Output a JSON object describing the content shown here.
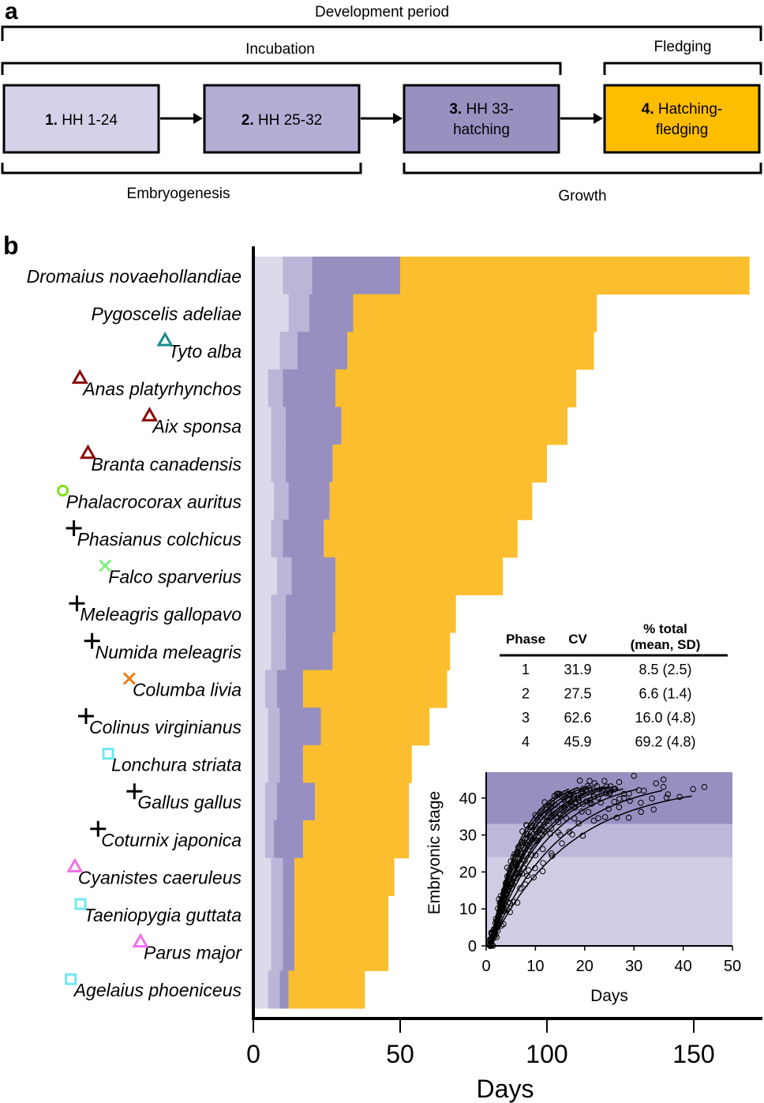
{
  "panel_a": {
    "panel_label": "a",
    "top_bracket_label": "Development  period",
    "incubation_label": "Incubation",
    "fledging_label": "Fledging",
    "embryogenesis_label": "Embryogenesis",
    "growth_label": "Growth",
    "boxes": [
      {
        "num": "1.",
        "text_line1": "HH 1-24",
        "text_line2": "",
        "color": "#d4d1e8"
      },
      {
        "num": "2.",
        "text_line1": "HH 25-32",
        "text_line2": "",
        "color": "#b3aed4"
      },
      {
        "num": "3.",
        "text_line1": "HH 33-",
        "text_line2": "hatching",
        "color": "#9990c0"
      },
      {
        "num": "4.",
        "text_line1": "Hatching-",
        "text_line2": "fledging",
        "color": "#ffbd00"
      }
    ]
  },
  "panel_b": {
    "panel_label": "b",
    "phase_colors": [
      "#dcdaea",
      "#bbb6d8",
      "#978fc0",
      "#fbbe2e"
    ]
  },
  "chart_data": [
    {
      "type": "bar",
      "subtype": "stacked-horizontal",
      "title": "",
      "xlabel": "Days",
      "ylabel": "",
      "xlim": [
        0,
        172
      ],
      "xticks": [
        0,
        50,
        100,
        150
      ],
      "series_names": [
        "Phase 1 (HH 1-24)",
        "Phase 2 (HH 25-32)",
        "Phase 3 (HH 33-hatching)",
        "Phase 4 (Hatching-fledging)"
      ],
      "species": [
        {
          "name": "Dromaius  novaehollandiae",
          "marker": "",
          "marker_color": "",
          "cum_days": [
            10,
            20,
            50,
            169
          ]
        },
        {
          "name": "Pygoscelis adeliae",
          "marker": "",
          "marker_color": "",
          "cum_days": [
            12,
            19,
            34,
            117
          ]
        },
        {
          "name": "Tyto alba",
          "marker": "triangle",
          "marker_color": "#1a8a8a",
          "cum_days": [
            9,
            15,
            32,
            116
          ]
        },
        {
          "name": "Anas platyrhynchos",
          "marker": "triangle",
          "marker_color": "#8b0a0a",
          "cum_days": [
            5,
            10,
            28,
            110
          ]
        },
        {
          "name": "Aix sponsa",
          "marker": "triangle",
          "marker_color": "#8b0a0a",
          "cum_days": [
            6,
            11,
            30,
            107
          ]
        },
        {
          "name": "Branta canadensis",
          "marker": "triangle",
          "marker_color": "#8b0a0a",
          "cum_days": [
            6,
            11,
            27,
            100
          ]
        },
        {
          "name": "Phalacrocorax auritus",
          "marker": "circle",
          "marker_color": "#80e020",
          "cum_days": [
            7,
            12,
            26,
            95
          ]
        },
        {
          "name": "Phasianus colchicus",
          "marker": "plus",
          "marker_color": "#000000",
          "cum_days": [
            6,
            10,
            24,
            90
          ]
        },
        {
          "name": "Falco sparverius",
          "marker": "x",
          "marker_color": "#80f080",
          "cum_days": [
            8,
            13,
            28,
            85
          ]
        },
        {
          "name": "Meleagris gallopavo",
          "marker": "plus",
          "marker_color": "#000000",
          "cum_days": [
            6,
            11,
            28,
            69
          ]
        },
        {
          "name": "Numida  meleagris",
          "marker": "plus",
          "marker_color": "#000000",
          "cum_days": [
            6,
            11,
            27,
            67
          ]
        },
        {
          "name": "Columba  livia",
          "marker": "x",
          "marker_color": "#f07a10",
          "cum_days": [
            4,
            8,
            17,
            66
          ]
        },
        {
          "name": "Colinus  virginianus",
          "marker": "plus",
          "marker_color": "#000000",
          "cum_days": [
            5,
            9,
            23,
            60
          ]
        },
        {
          "name": "Lonchura striata",
          "marker": "square",
          "marker_color": "#70e8f0",
          "cum_days": [
            5,
            9,
            17,
            54
          ]
        },
        {
          "name": "Gallus gallus",
          "marker": "plus",
          "marker_color": "#000000",
          "cum_days": [
            4,
            8,
            21,
            53
          ]
        },
        {
          "name": "Coturnix japonica",
          "marker": "plus",
          "marker_color": "#000000",
          "cum_days": [
            4,
            7,
            17,
            53
          ]
        },
        {
          "name": "Cyanistes caeruleus",
          "marker": "triangle",
          "marker_color": "#f070e8",
          "cum_days": [
            6,
            10,
            14,
            48
          ]
        },
        {
          "name": "Taeniopygia guttata",
          "marker": "square",
          "marker_color": "#70e8f0",
          "cum_days": [
            6,
            10,
            14,
            46
          ]
        },
        {
          "name": "Parus major",
          "marker": "triangle",
          "marker_color": "#f070e8",
          "cum_days": [
            6,
            10,
            14,
            46
          ]
        },
        {
          "name": "Agelaius phoeniceus",
          "marker": "square",
          "marker_color": "#70e8f0",
          "cum_days": [
            5,
            9,
            12,
            38
          ]
        }
      ]
    },
    {
      "type": "table",
      "columns": [
        "Phase",
        "CV",
        "% total (mean,  SD)"
      ],
      "column_header_lines": [
        [
          "Phase"
        ],
        [
          "CV"
        ],
        [
          "% total",
          "(mean,  SD)"
        ]
      ],
      "rows": [
        [
          "1",
          "31.9",
          "8.5 (2.5)"
        ],
        [
          "2",
          "27.5",
          "6.6 (1.4)"
        ],
        [
          "3",
          "62.6",
          "16.0 (4.8)"
        ],
        [
          "4",
          "45.9",
          "69.2 (4.8)"
        ]
      ]
    },
    {
      "type": "scatter",
      "title": "",
      "xlabel": "Days",
      "ylabel": "Embryonic stage",
      "xlim": [
        0,
        50
      ],
      "ylim": [
        0,
        47
      ],
      "xticks": [
        0,
        10,
        20,
        30,
        40,
        50
      ],
      "yticks": [
        0,
        10,
        20,
        30,
        40
      ],
      "background_bands": [
        {
          "from": 0,
          "to": 24,
          "color": "#d0cce4"
        },
        {
          "from": 24,
          "to": 33,
          "color": "#bdb8da"
        },
        {
          "from": 33,
          "to": 47,
          "color": "#978fc0"
        }
      ],
      "fit_curves": [
        {
          "max_stage": 46,
          "end_day": 17,
          "rate": 0.16
        },
        {
          "max_stage": 46,
          "end_day": 19,
          "rate": 0.15
        },
        {
          "max_stage": 46,
          "end_day": 21,
          "rate": 0.14
        },
        {
          "max_stage": 46,
          "end_day": 22,
          "rate": 0.13
        },
        {
          "max_stage": 46,
          "end_day": 24,
          "rate": 0.12
        },
        {
          "max_stage": 46,
          "end_day": 25,
          "rate": 0.115
        },
        {
          "max_stage": 46,
          "end_day": 26,
          "rate": 0.11
        },
        {
          "max_stage": 46,
          "end_day": 27,
          "rate": 0.1
        },
        {
          "max_stage": 46,
          "end_day": 28,
          "rate": 0.095
        },
        {
          "max_stage": 46,
          "end_day": 31,
          "rate": 0.085
        },
        {
          "max_stage": 46,
          "end_day": 36,
          "rate": 0.07
        },
        {
          "max_stage": 44,
          "end_day": 42,
          "rate": 0.062
        }
      ],
      "extra_points": [
        [
          44.3,
          43
        ],
        [
          36.9,
          41
        ],
        [
          36,
          45
        ],
        [
          34.5,
          44
        ],
        [
          32,
          42
        ],
        [
          30,
          46
        ],
        [
          28,
          40
        ],
        [
          26,
          39
        ]
      ]
    }
  ]
}
